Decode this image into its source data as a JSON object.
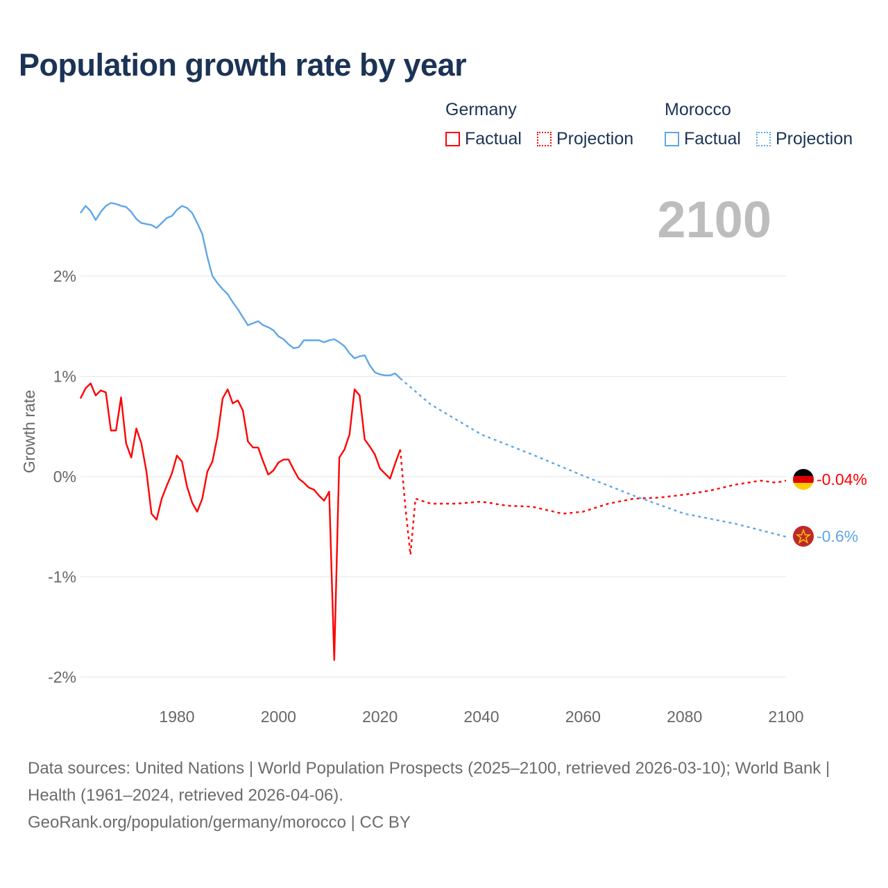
{
  "title": "Population growth rate by year",
  "legend": {
    "groups": [
      {
        "name": "Germany",
        "factual": "Factual",
        "projection": "Projection",
        "color": "#ff0000"
      },
      {
        "name": "Morocco",
        "factual": "Factual",
        "projection": "Projection",
        "color": "#5ea6e8"
      }
    ]
  },
  "year_watermark": "2100",
  "end_labels": {
    "germany": "-0.04%",
    "morocco": "-0.6%"
  },
  "footer": {
    "sources": "Data sources: United Nations | World Population Prospects (2025–2100, retrieved 2026-03-10); World Bank | Health (1961–2024, retrieved 2026-04-06).",
    "credit": "GeoRank.org/population/germany/morocco | CC BY"
  },
  "chart_data": {
    "type": "line",
    "title": "Population growth rate by year",
    "xlabel": "",
    "ylabel": "Growth rate",
    "xlim": [
      1961,
      2100
    ],
    "ylim": [
      -2.2,
      3.0
    ],
    "x_ticks": [
      1980,
      2000,
      2020,
      2040,
      2060,
      2080,
      2100
    ],
    "x_tick_labels": [
      "1980",
      "2000",
      "2020",
      "2040",
      "2060",
      "2080",
      "2100"
    ],
    "y_ticks": [
      2,
      1,
      0,
      -1,
      -2
    ],
    "y_tick_labels": [
      "2%",
      "1%",
      "0%",
      "-1%",
      "-2%"
    ],
    "grid": true,
    "legend_position": "top-right",
    "series": [
      {
        "name": "Germany Factual",
        "color": "#ff0000",
        "style": "solid",
        "x_start": 1961,
        "values": [
          0.78,
          0.88,
          0.93,
          0.81,
          0.86,
          0.84,
          0.46,
          0.46,
          0.79,
          0.33,
          0.19,
          0.48,
          0.33,
          0.05,
          -0.37,
          -0.43,
          -0.22,
          -0.09,
          0.03,
          0.21,
          0.15,
          -0.1,
          -0.26,
          -0.35,
          -0.22,
          0.05,
          0.15,
          0.4,
          0.78,
          0.87,
          0.73,
          0.76,
          0.66,
          0.35,
          0.29,
          0.29,
          0.15,
          0.02,
          0.06,
          0.14,
          0.17,
          0.17,
          0.07,
          -0.02,
          -0.06,
          -0.11,
          -0.13,
          -0.19,
          -0.24,
          -0.15,
          -1.83,
          0.19,
          0.27,
          0.42,
          0.87,
          0.81,
          0.37,
          0.3,
          0.22,
          0.08,
          0.03,
          -0.02,
          0.13,
          0.27
        ]
      },
      {
        "name": "Germany Projection",
        "color": "#ff0000",
        "style": "dotted",
        "x": [
          2024,
          2025,
          2026,
          2027,
          2030,
          2035,
          2040,
          2045,
          2050,
          2056,
          2060,
          2065,
          2070,
          2075,
          2080,
          2085,
          2090,
          2095,
          2098,
          2100
        ],
        "values": [
          0.27,
          -0.3,
          -0.78,
          -0.22,
          -0.27,
          -0.27,
          -0.25,
          -0.29,
          -0.3,
          -0.37,
          -0.35,
          -0.27,
          -0.22,
          -0.21,
          -0.18,
          -0.14,
          -0.08,
          -0.04,
          -0.06,
          -0.04
        ]
      },
      {
        "name": "Morocco Factual",
        "color": "#5ea6e8",
        "style": "solid",
        "x_start": 1961,
        "values": [
          2.63,
          2.7,
          2.65,
          2.56,
          2.64,
          2.7,
          2.73,
          2.72,
          2.7,
          2.69,
          2.64,
          2.57,
          2.53,
          2.52,
          2.51,
          2.48,
          2.53,
          2.58,
          2.6,
          2.66,
          2.7,
          2.68,
          2.63,
          2.53,
          2.42,
          2.19,
          2.0,
          1.93,
          1.87,
          1.82,
          1.74,
          1.67,
          1.59,
          1.51,
          1.53,
          1.55,
          1.51,
          1.49,
          1.46,
          1.4,
          1.37,
          1.32,
          1.28,
          1.29,
          1.36,
          1.36,
          1.36,
          1.36,
          1.34,
          1.36,
          1.37,
          1.34,
          1.3,
          1.23,
          1.18,
          1.2,
          1.21,
          1.11,
          1.04,
          1.02,
          1.01,
          1.01,
          1.03,
          0.98
        ]
      },
      {
        "name": "Morocco Projection",
        "color": "#5ea6e8",
        "style": "dotted",
        "x": [
          2024,
          2030,
          2040,
          2050,
          2060,
          2070,
          2080,
          2090,
          2100
        ],
        "values": [
          0.98,
          0.72,
          0.42,
          0.22,
          0.01,
          -0.19,
          -0.37,
          -0.47,
          -0.6
        ]
      }
    ]
  }
}
